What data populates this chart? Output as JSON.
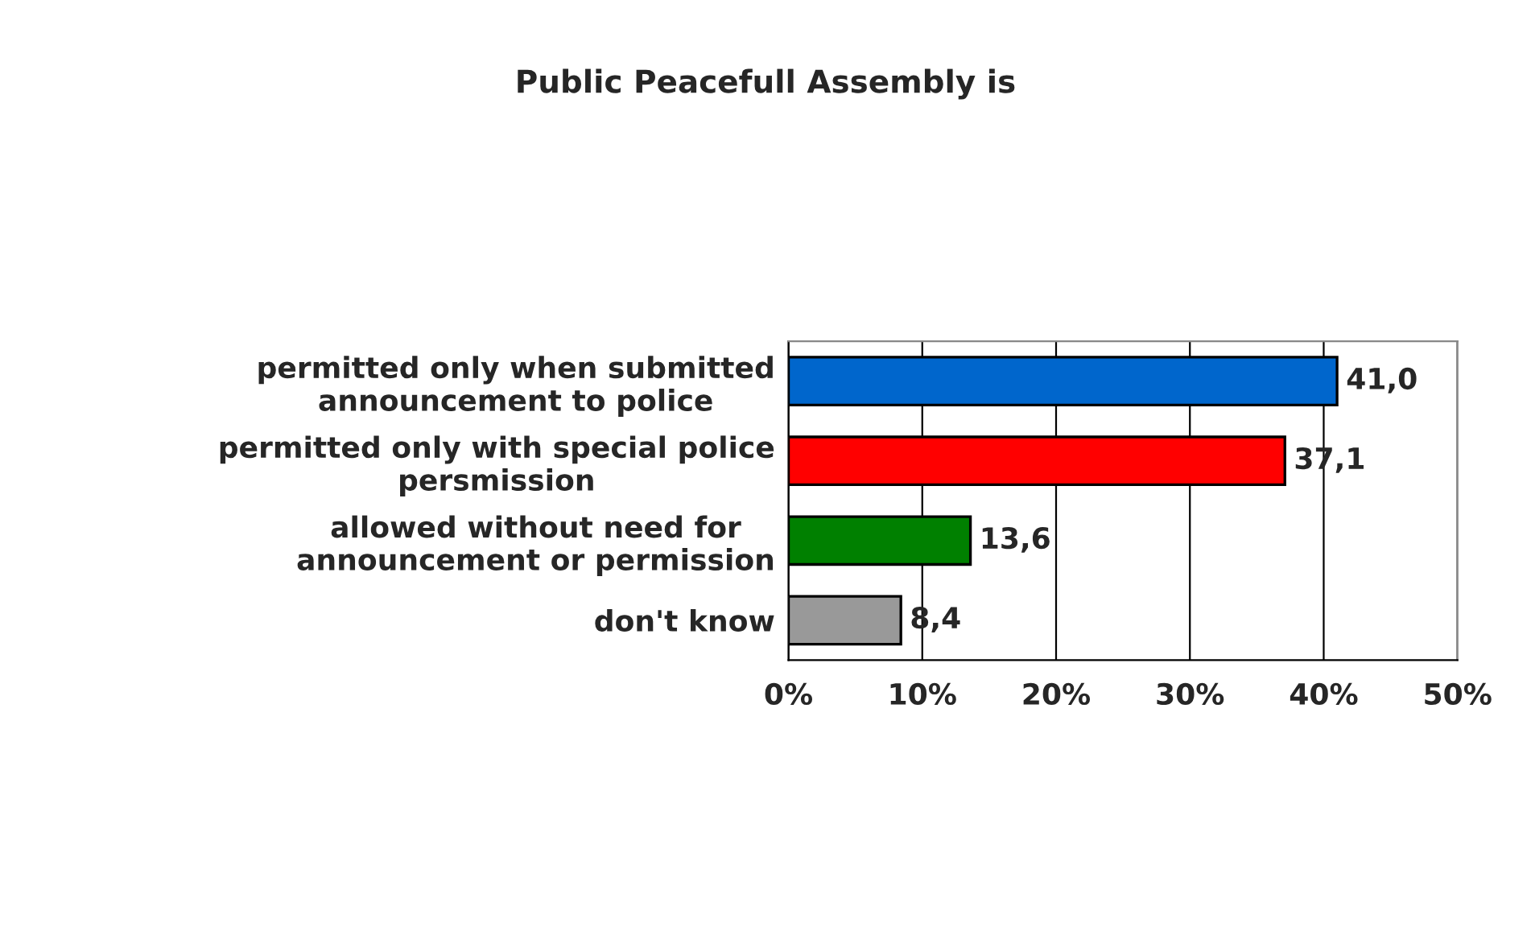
{
  "chart_data": {
    "type": "bar",
    "orientation": "horizontal",
    "title": "Public Peacefull Assembly is",
    "categories": [
      "permitted only when submitted\nannouncement to police",
      "permitted only with special police\npersmission",
      "allowed without need for\nannouncement or permission",
      "don't know"
    ],
    "values": [
      41.0,
      37.1,
      13.6,
      8.4
    ],
    "colors": [
      "#0066cc",
      "#ff0000",
      "#008000",
      "#999999"
    ],
    "value_labels": [
      "41,0",
      "37,1",
      "13,6",
      "8,4"
    ],
    "xlim": [
      0,
      50
    ],
    "xticks": [
      {
        "value": 0,
        "label": "0%"
      },
      {
        "value": 10,
        "label": "10%"
      },
      {
        "value": 20,
        "label": "20%"
      },
      {
        "value": 30,
        "label": "30%"
      },
      {
        "value": 40,
        "label": "40%"
      },
      {
        "value": 50,
        "label": "50%"
      }
    ],
    "grid": "x",
    "legend": false
  }
}
